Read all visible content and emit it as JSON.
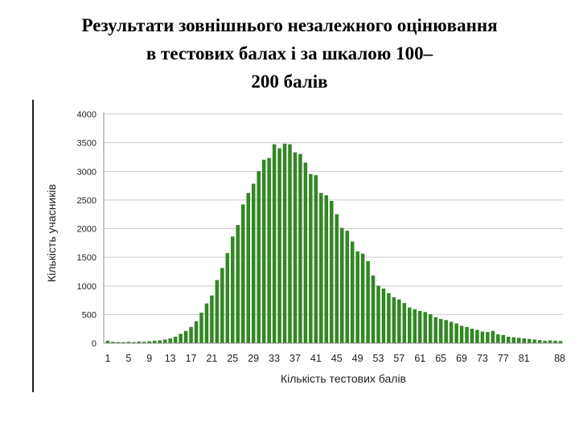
{
  "slide": {
    "title_lines": [
      "Результати зовнішнього незалежного оцінювання",
      "в тестових балах і за шкалою 100–",
      "200 балів"
    ]
  },
  "colors": {
    "bar": "#2e8b1e",
    "bar_dark": "#1f6e13",
    "grid": "#c8c8c8",
    "axis": "#8a8a8a",
    "text": "#222222"
  },
  "chart_data": {
    "type": "bar",
    "title": "",
    "xlabel": "Кількість тестових балів",
    "ylabel": "Кількість учасників",
    "ylim": [
      0,
      4000
    ],
    "yticks": [
      0,
      500,
      1000,
      1500,
      2000,
      2500,
      3000,
      3500,
      4000
    ],
    "xtick_labels": [
      "1",
      "5",
      "9",
      "13",
      "17",
      "21",
      "25",
      "29",
      "33",
      "37",
      "41",
      "45",
      "49",
      "53",
      "57",
      "61",
      "65",
      "69",
      "73",
      "77",
      "81",
      "88"
    ],
    "grid": true,
    "categories": [
      "1",
      "2",
      "3",
      "4",
      "5",
      "6",
      "7",
      "8",
      "9",
      "10",
      "11",
      "12",
      "13",
      "14",
      "15",
      "16",
      "17",
      "18",
      "19",
      "20",
      "21",
      "22",
      "23",
      "24",
      "25",
      "26",
      "27",
      "28",
      "29",
      "30",
      "31",
      "32",
      "33",
      "34",
      "35",
      "36",
      "37",
      "38",
      "39",
      "40",
      "41",
      "42",
      "43",
      "44",
      "45",
      "46",
      "47",
      "48",
      "49",
      "50",
      "51",
      "52",
      "53",
      "54",
      "55",
      "56",
      "57",
      "58",
      "59",
      "60",
      "61",
      "62",
      "63",
      "64",
      "65",
      "66",
      "67",
      "68",
      "69",
      "70",
      "71",
      "72",
      "73",
      "74",
      "75",
      "76",
      "77",
      "78",
      "79",
      "80",
      "81",
      "82",
      "83",
      "84",
      "85",
      "86",
      "87",
      "88"
    ],
    "values": [
      40,
      20,
      15,
      10,
      20,
      15,
      25,
      20,
      30,
      40,
      45,
      60,
      80,
      110,
      160,
      210,
      280,
      380,
      530,
      690,
      830,
      1100,
      1310,
      1570,
      1860,
      2060,
      2420,
      2620,
      2780,
      3000,
      3200,
      3230,
      3470,
      3400,
      3480,
      3470,
      3330,
      3300,
      3150,
      2950,
      2930,
      2620,
      2580,
      2480,
      2250,
      2010,
      1960,
      1770,
      1600,
      1560,
      1430,
      1180,
      1000,
      950,
      870,
      800,
      760,
      700,
      620,
      590,
      560,
      540,
      500,
      450,
      420,
      400,
      370,
      340,
      300,
      280,
      250,
      230,
      200,
      190,
      210,
      150,
      140,
      110,
      100,
      90,
      80,
      70,
      60,
      50,
      40,
      45,
      40,
      35
    ]
  }
}
